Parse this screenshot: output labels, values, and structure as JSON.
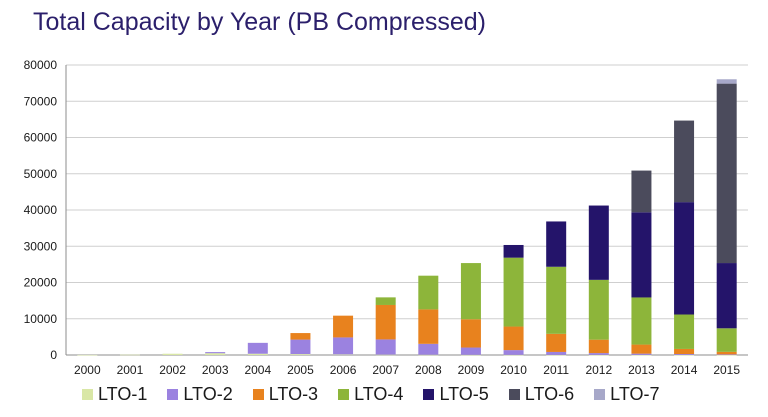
{
  "chart_data": {
    "type": "bar",
    "stacked": true,
    "title": "Total Capacity by Year (PB Compressed)",
    "xlabel": "",
    "ylabel": "",
    "ylim": [
      0,
      80000
    ],
    "yticks": [
      0,
      10000,
      20000,
      30000,
      40000,
      50000,
      60000,
      70000,
      80000
    ],
    "grid": true,
    "legend_position": "bottom",
    "categories": [
      "2000",
      "2001",
      "2002",
      "2003",
      "2004",
      "2005",
      "2006",
      "2007",
      "2008",
      "2009",
      "2010",
      "2011",
      "2012",
      "2013",
      "2014",
      "2015"
    ],
    "series": [
      {
        "name": "LTO-1",
        "color": "#d9e7a6",
        "values": [
          20,
          80,
          350,
          500,
          350,
          250,
          150,
          100,
          80,
          60,
          50,
          40,
          30,
          25,
          20,
          15
        ]
      },
      {
        "name": "LTO-2",
        "color": "#9b82e0",
        "values": [
          0,
          0,
          0,
          300,
          3000,
          4000,
          4700,
          4200,
          3000,
          2000,
          1300,
          800,
          500,
          350,
          250,
          150
        ]
      },
      {
        "name": "LTO-3",
        "color": "#e8821e",
        "values": [
          0,
          0,
          0,
          0,
          0,
          1800,
          6000,
          9500,
          9500,
          7800,
          6500,
          5000,
          3700,
          2500,
          1400,
          700
        ]
      },
      {
        "name": "LTO-4",
        "color": "#8db53a",
        "values": [
          0,
          0,
          0,
          0,
          0,
          0,
          0,
          2100,
          9300,
          15500,
          19000,
          18500,
          16500,
          13000,
          9500,
          6500
        ]
      },
      {
        "name": "LTO-5",
        "color": "#24146a",
        "values": [
          0,
          0,
          0,
          0,
          0,
          0,
          0,
          0,
          0,
          0,
          3500,
          12500,
          20500,
          23500,
          31000,
          18000
        ]
      },
      {
        "name": "LTO-6",
        "color": "#4b4b5c",
        "values": [
          0,
          0,
          0,
          0,
          0,
          0,
          0,
          0,
          0,
          0,
          0,
          0,
          0,
          11500,
          22500,
          49500
        ]
      },
      {
        "name": "LTO-7",
        "color": "#a7a8c9",
        "values": [
          0,
          0,
          0,
          0,
          0,
          0,
          0,
          0,
          0,
          0,
          0,
          0,
          0,
          0,
          0,
          1200
        ]
      }
    ]
  }
}
